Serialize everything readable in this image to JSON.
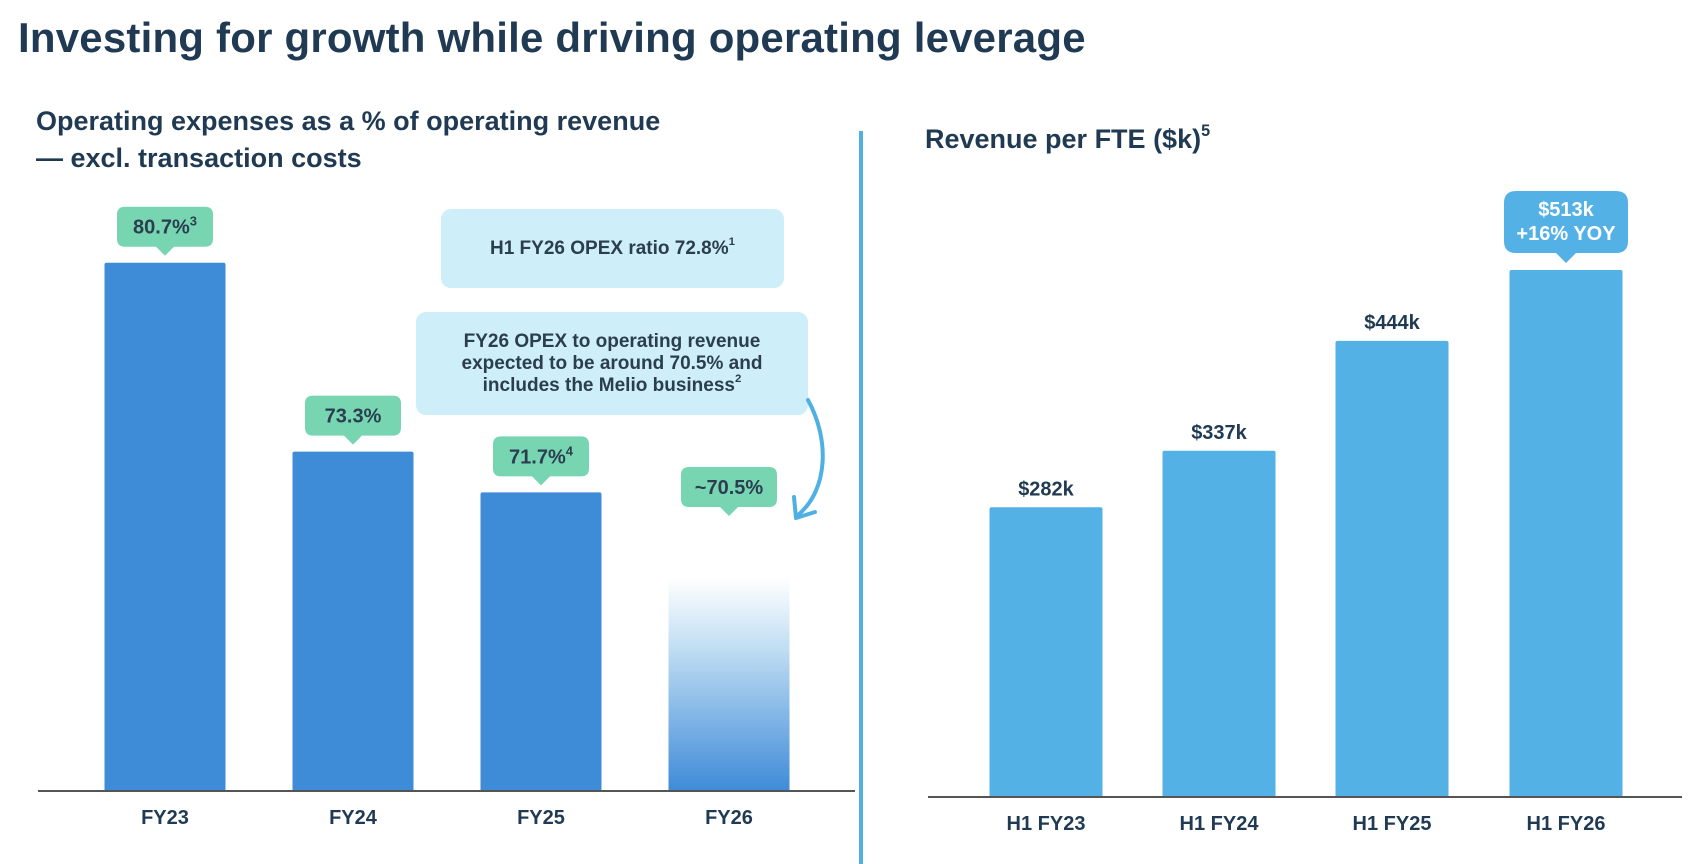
{
  "title": "Investing for growth while driving operating leverage",
  "colors": {
    "title": "#1f3a52",
    "left_bar": "#3e8bd8",
    "right_bar": "#54b1e5",
    "bubble_green": "#77d6b1",
    "callout_bg": "#ceeef9",
    "divider": "#4fb0e4"
  },
  "callouts": {
    "h1_opex": {
      "text": "H1 FY26 OPEX ratio 72.8%",
      "sup": "1"
    },
    "fy26_outlook": {
      "line1": "FY26 OPEX to operating revenue",
      "line2": "expected to be around 70.5% and",
      "line3": "includes the Melio business",
      "sup": "2"
    }
  },
  "chart_data": [
    {
      "type": "bar",
      "title": "Operating expenses as a % of operating revenue — excl. transaction costs",
      "title_line1": "Operating expenses as a % of operating revenue",
      "title_line2": "— excl. transaction costs",
      "xlabel": "",
      "ylabel": "",
      "categories": [
        "FY23",
        "FY24",
        "FY25",
        "FY26"
      ],
      "values": [
        80.7,
        73.3,
        71.7,
        70.5
      ],
      "labels": [
        "80.7%",
        "73.3%",
        "71.7%",
        "~70.5%"
      ],
      "label_sups": [
        "3",
        "",
        "4",
        ""
      ],
      "projected": [
        false,
        false,
        false,
        true
      ],
      "ylim": [
        60,
        85
      ],
      "grid": false,
      "legend": "none"
    },
    {
      "type": "bar",
      "title": "Revenue per FTE ($k)",
      "title_sup": "5",
      "xlabel": "",
      "ylabel": "",
      "categories": [
        "H1 FY23",
        "H1 FY24",
        "H1 FY25",
        "H1 FY26"
      ],
      "values": [
        282,
        337,
        444,
        513
      ],
      "labels": [
        "$282k",
        "$337k",
        "$444k",
        "$513k"
      ],
      "highlight_note": "+16% YOY",
      "ylim": [
        0,
        550
      ],
      "grid": false,
      "legend": "none"
    }
  ]
}
